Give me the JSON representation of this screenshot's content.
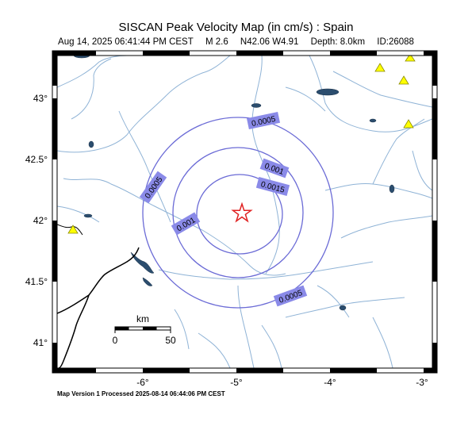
{
  "title": "SISCAN Peak Velocity Map (in cm/s) : Spain",
  "subtitle": {
    "date": "Aug 14, 2025 06:41:44 PM CEST",
    "magnitude": "M 2.6",
    "location": "N42.06 W4.91",
    "depth": "Depth: 8.0km",
    "id": "ID:26088"
  },
  "footer": "Map Version 1 Processed 2025-08-14 06:44:06 PM CEST",
  "axes": {
    "x_ticks": [
      "-6°",
      "-5°",
      "-4°",
      "-3°"
    ],
    "y_ticks": [
      "43°",
      "42.5°",
      "42°",
      "41.5°",
      "41°"
    ]
  },
  "scale_bar": {
    "unit": "km",
    "start": "0",
    "end": "50"
  },
  "contours": [
    {
      "value": "0.0005",
      "labels": [
        "0.0005",
        "0.0005",
        "0.0005"
      ]
    },
    {
      "value": "0.001",
      "labels": [
        "0.001",
        "0.001"
      ]
    },
    {
      "value": "0.0015",
      "labels": [
        "0.0015"
      ]
    }
  ],
  "colors": {
    "contour": "#6b6bd6",
    "label_fill": "#8a8ae8",
    "river": "#8fb3d6",
    "lake": "#2b4d6e",
    "epicenter": "#e02020",
    "station": "#ffff00"
  },
  "icons": {
    "epicenter": "star-icon",
    "station": "triangle-icon"
  }
}
